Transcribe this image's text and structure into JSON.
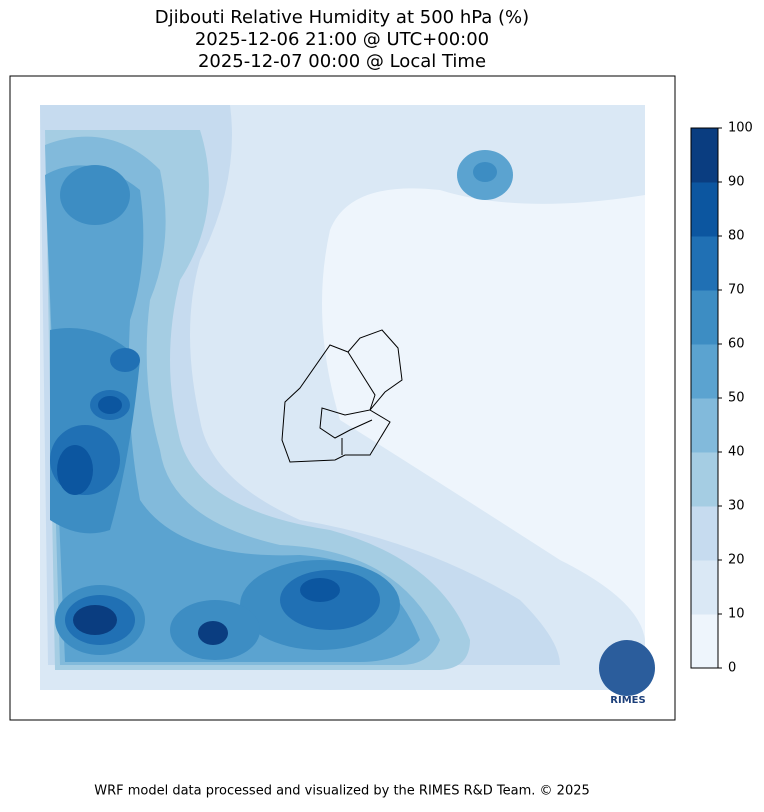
{
  "title": [
    "Djibouti Relative Humidity at 500 hPa (%)",
    "2025-12-06 21:00 @ UTC+00:00",
    "2025-12-07 00:00 @ Local Time"
  ],
  "colorbar": {
    "range": [
      0,
      100
    ],
    "ticks": [
      0,
      10,
      20,
      30,
      40,
      50,
      60,
      70,
      80,
      90,
      100
    ],
    "colors": [
      "#eef5fc",
      "#dae8f5",
      "#c6dbef",
      "#a5cde3",
      "#82badb",
      "#5ba3d0",
      "#3d8dc3",
      "#2070b4",
      "#0c56a0",
      "#0a3d80"
    ]
  },
  "logo": "RIMES",
  "footer": "WRF model data processed and visualized by the RIMES R&D Team. © 2025"
}
